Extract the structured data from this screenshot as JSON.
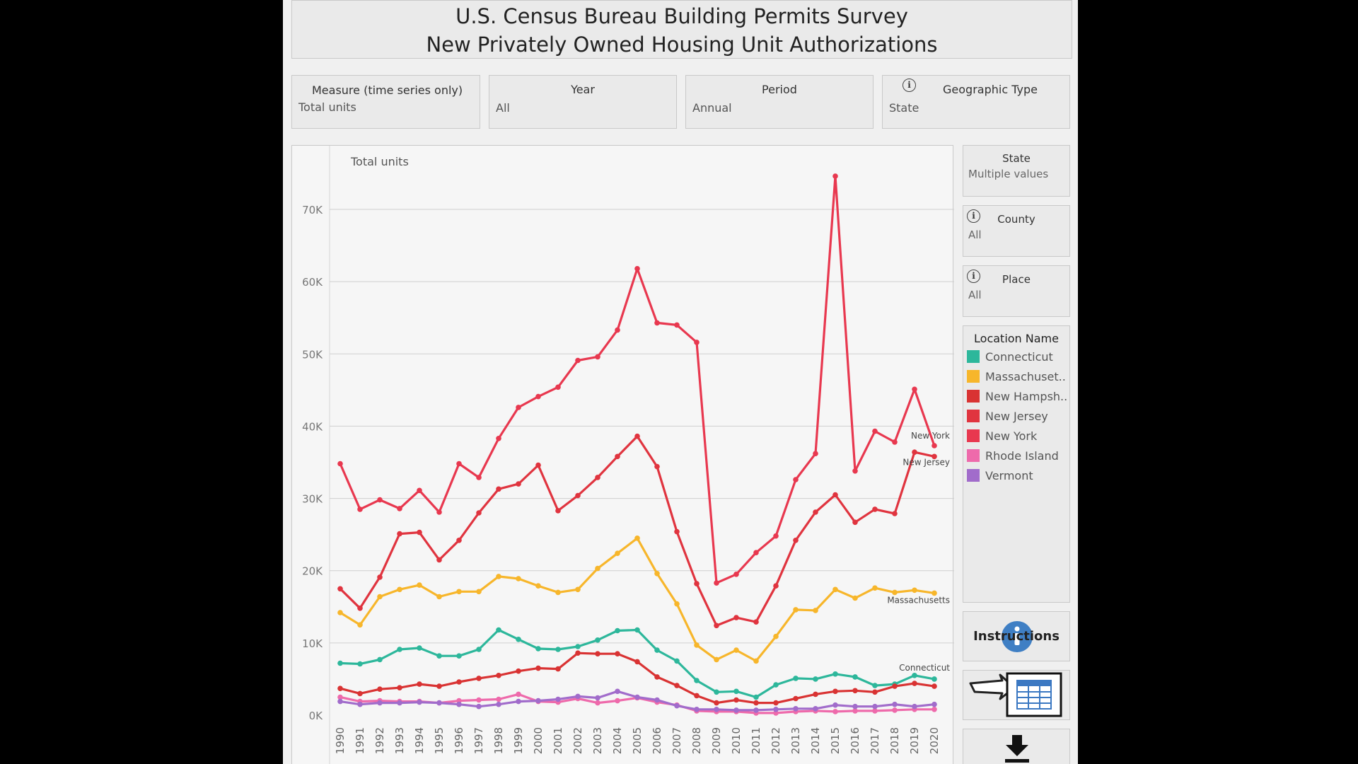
{
  "header": {
    "title_line1": "U.S. Census Bureau Building Permits Survey",
    "title_line2": "New Privately Owned Housing Unit Authorizations"
  },
  "filters": {
    "measure": {
      "label": "Measure (time series only)",
      "value": "Total units"
    },
    "year": {
      "label": "Year",
      "value": "All"
    },
    "period": {
      "label": "Period",
      "value": "Annual"
    },
    "geo_type": {
      "label": "Geographic Type",
      "value": "State"
    }
  },
  "side_filters": {
    "state": {
      "label": "State",
      "value": "Multiple values"
    },
    "county": {
      "label": "County",
      "value": "All"
    },
    "place": {
      "label": "Place",
      "value": "All"
    }
  },
  "legend": {
    "title": "Location Name",
    "items": [
      {
        "label": "Connecticut",
        "color": "#2db79b"
      },
      {
        "label": "Massachuset..",
        "color": "#f7b62b"
      },
      {
        "label": "New Hampsh..",
        "color": "#d93333"
      },
      {
        "label": "New Jersey",
        "color": "#e0343f"
      },
      {
        "label": "New York",
        "color": "#e8384f"
      },
      {
        "label": "Rhode Island",
        "color": "#ee6aab"
      },
      {
        "label": "Vermont",
        "color": "#a16ccb"
      }
    ]
  },
  "buttons": {
    "instructions": "Instructions"
  },
  "icons": {
    "info": "info-icon",
    "arrow": "pointing-arrow-icon",
    "table": "table-icon",
    "download": "download-icon"
  },
  "chart_data": {
    "type": "line",
    "title": "Total units",
    "xlabel": "",
    "ylabel": "Total units",
    "ylim": [
      0,
      80000
    ],
    "yticks": [
      0,
      10000,
      20000,
      30000,
      40000,
      50000,
      60000,
      70000
    ],
    "ytick_labels": [
      "0K",
      "10K",
      "20K",
      "30K",
      "40K",
      "50K",
      "60K",
      "70K"
    ],
    "x": [
      "1990",
      "1991",
      "1992",
      "1993",
      "1994",
      "1995",
      "1996",
      "1997",
      "1998",
      "1999",
      "2000",
      "2001",
      "2002",
      "2003",
      "2004",
      "2005",
      "2006",
      "2007",
      "2008",
      "2009",
      "2010",
      "2011",
      "2012",
      "2013",
      "2014",
      "2015",
      "2016",
      "2017",
      "2018",
      "2019",
      "2020"
    ],
    "series": [
      {
        "name": "Connecticut",
        "color": "#2db79b",
        "end_label": "Connecticut",
        "values": [
          7200,
          7100,
          7700,
          9100,
          9300,
          8200,
          8200,
          9100,
          11800,
          10500,
          9200,
          9100,
          9500,
          10400,
          11700,
          11800,
          9000,
          7500,
          4800,
          3200,
          3300,
          2500,
          4200,
          5100,
          5000,
          5700,
          5300,
          4100,
          4300,
          5500,
          5000
        ]
      },
      {
        "name": "Massachusetts",
        "color": "#f7b62b",
        "end_label": "Massachusetts",
        "values": [
          14200,
          12500,
          16400,
          17400,
          18000,
          16400,
          17100,
          17100,
          19200,
          18900,
          17900,
          17000,
          17400,
          20300,
          22400,
          24500,
          19600,
          15400,
          9700,
          7700,
          9000,
          7500,
          10900,
          14600,
          14500,
          17400,
          16200,
          17600,
          17000,
          17300,
          16900
        ]
      },
      {
        "name": "New Hampshire",
        "color": "#d93333",
        "end_label": "",
        "values": [
          3700,
          3000,
          3600,
          3800,
          4300,
          4000,
          4600,
          5100,
          5500,
          6100,
          6500,
          6400,
          8600,
          8500,
          8500,
          7400,
          5300,
          4100,
          2700,
          1700,
          2100,
          1700,
          1700,
          2300,
          2900,
          3300,
          3400,
          3200,
          4000,
          4400,
          4000
        ]
      },
      {
        "name": "New Jersey",
        "color": "#e0343f",
        "end_label": "New Jersey",
        "values": [
          17500,
          14800,
          19100,
          25100,
          25300,
          21500,
          24200,
          28000,
          31300,
          32000,
          34600,
          28300,
          30400,
          32900,
          35800,
          38600,
          34400,
          25400,
          18200,
          12400,
          13500,
          12900,
          17900,
          24200,
          28100,
          30500,
          26700,
          28500,
          27900,
          36400,
          35800
        ]
      },
      {
        "name": "New York",
        "color": "#e8384f",
        "end_label": "New York",
        "values": [
          34800,
          28500,
          29800,
          28600,
          31100,
          28100,
          34800,
          32900,
          38300,
          42600,
          44100,
          45400,
          49100,
          49600,
          53300,
          61800,
          54300,
          54000,
          51600,
          18300,
          19500,
          22500,
          24800,
          32600,
          36200,
          74600,
          33800,
          39300,
          37800,
          45100,
          37300
        ]
      },
      {
        "name": "Rhode Island",
        "color": "#ee6aab",
        "end_label": "",
        "values": [
          2500,
          1900,
          2000,
          1900,
          1900,
          1700,
          2000,
          2100,
          2200,
          2900,
          1900,
          1800,
          2300,
          1700,
          2000,
          2400,
          1800,
          1400,
          600,
          500,
          500,
          300,
          300,
          500,
          600,
          500,
          600,
          600,
          700,
          800,
          800
        ]
      },
      {
        "name": "Vermont",
        "color": "#a16ccb",
        "end_label": "",
        "values": [
          1900,
          1500,
          1700,
          1700,
          1800,
          1700,
          1500,
          1200,
          1500,
          1900,
          2000,
          2200,
          2600,
          2400,
          3300,
          2500,
          2100,
          1300,
          800,
          800,
          700,
          700,
          800,
          900,
          900,
          1400,
          1200,
          1200,
          1500,
          1200,
          1500
        ]
      }
    ]
  }
}
